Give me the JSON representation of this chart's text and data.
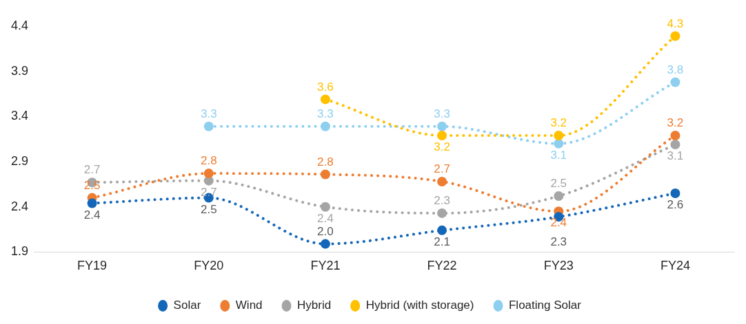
{
  "chart_data": {
    "type": "line",
    "categories": [
      "FY19",
      "FY20",
      "FY21",
      "FY22",
      "FY23",
      "FY24"
    ],
    "series": [
      {
        "name": "Solar",
        "color": "#1466b8",
        "values": [
          2.44,
          2.5,
          1.99,
          2.14,
          2.29,
          2.55
        ],
        "value_labels": [
          "2.4",
          "2.5",
          "2.0",
          "2.1",
          "2.3",
          "2.6"
        ]
      },
      {
        "name": "Wind",
        "color": "#ed7d31",
        "values": [
          2.5,
          2.77,
          2.76,
          2.68,
          2.35,
          3.19
        ],
        "value_labels": [
          "2.5",
          "2.8",
          "2.8",
          "2.7",
          "2.4",
          "3.2"
        ]
      },
      {
        "name": "Hybrid",
        "color": "#a5a5a5",
        "values": [
          2.67,
          2.69,
          2.4,
          2.33,
          2.52,
          3.09
        ],
        "value_labels": [
          "2.7",
          "2.7",
          "2.4",
          "2.3",
          "2.5",
          "3.1"
        ]
      },
      {
        "name": "Hybrid (with storage)",
        "color": "#ffc000",
        "values": [
          null,
          null,
          3.59,
          3.19,
          3.19,
          4.29
        ],
        "value_labels": [
          null,
          null,
          "3.6",
          "3.2",
          "3.2",
          "4.3"
        ]
      },
      {
        "name": "Floating Solar",
        "color": "#8ecff0",
        "values": [
          null,
          3.29,
          3.29,
          3.29,
          3.1,
          3.78
        ],
        "value_labels": [
          null,
          "3.3",
          "3.3",
          "3.3",
          "3.1",
          "3.8"
        ]
      }
    ],
    "ylim": [
      1.9,
      4.4
    ],
    "yticks": [
      1.9,
      2.4,
      2.9,
      3.4,
      3.9,
      4.4
    ],
    "grid": false,
    "legend": "bottom",
    "marker": "circle",
    "line_style": "dotted"
  }
}
